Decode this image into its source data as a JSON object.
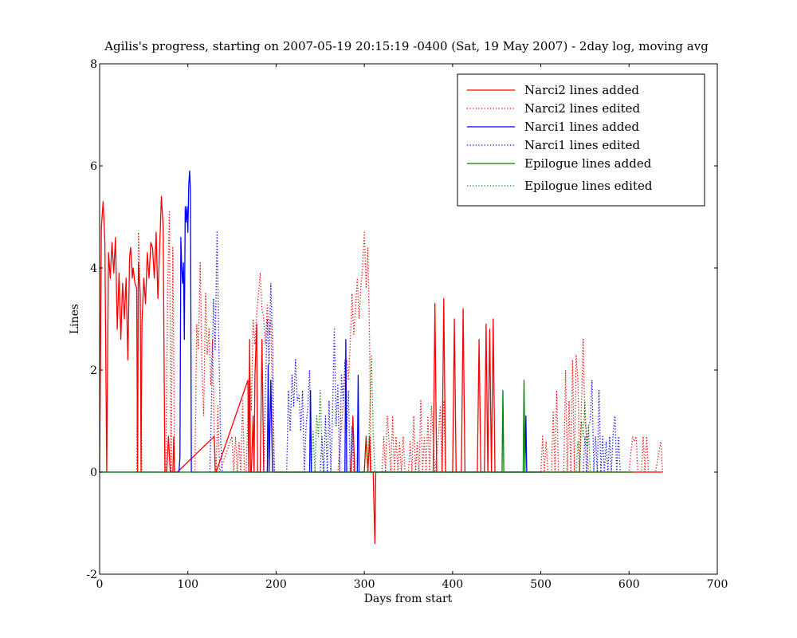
{
  "chart_data": {
    "type": "line",
    "title": "Agilis's progress, starting on 2007-05-19 20:15:19 -0400 (Sat, 19 May 2007)  - 2day log, moving avg",
    "xlabel": "Days from start",
    "ylabel": "Lines",
    "xlim": [
      0,
      700
    ],
    "ylim": [
      -2,
      8
    ],
    "xticks": [
      "0",
      "100",
      "200",
      "300",
      "400",
      "500",
      "600",
      "700"
    ],
    "yticks": [
      "-2",
      "0",
      "2",
      "4",
      "6",
      "8"
    ],
    "grid": false,
    "legend_position": "top-right",
    "series": [
      {
        "name": "Narci2 lines added",
        "color": "#ff0000",
        "style": "solid",
        "x": [
          0,
          2,
          4,
          6,
          8,
          10,
          12,
          14,
          16,
          18,
          20,
          22,
          24,
          26,
          28,
          30,
          32,
          34,
          35,
          36,
          37,
          38,
          40,
          42,
          43,
          44,
          46,
          47,
          48,
          50,
          52,
          54,
          56,
          58,
          60,
          62,
          64,
          66,
          68,
          70,
          72,
          74,
          76,
          78,
          80,
          82,
          83,
          84,
          85,
          86,
          87,
          88,
          130,
          131,
          132,
          168,
          169,
          170,
          171,
          172,
          174,
          175,
          176,
          178,
          179,
          180,
          182,
          184,
          186,
          187,
          188,
          238,
          240,
          242,
          285,
          287,
          289,
          290,
          300,
          302,
          304,
          306,
          307,
          308,
          310,
          312,
          313,
          314,
          316,
          378,
          380,
          382,
          388,
          390,
          392,
          400,
          402,
          404,
          410,
          412,
          414,
          428,
          430,
          432,
          436,
          438,
          440,
          442,
          444,
          446,
          448,
          450,
          600,
          610,
          620,
          630,
          638
        ],
        "y": [
          0,
          4.8,
          5.3,
          4.5,
          0,
          4.3,
          3.8,
          4.5,
          3.9,
          4.6,
          2.8,
          3.9,
          2.6,
          3.7,
          3.0,
          3.8,
          2.2,
          4.2,
          4.4,
          4.2,
          3.8,
          4.0,
          3.7,
          3.6,
          0,
          4.1,
          3.5,
          0,
          2.9,
          3.8,
          3.3,
          4.3,
          3.8,
          4.5,
          4.4,
          3.8,
          4.7,
          3.4,
          4.4,
          5.4,
          4.8,
          0,
          0,
          0.7,
          0,
          0,
          0,
          0.7,
          0,
          0,
          0,
          0,
          0.7,
          0,
          0,
          1.8,
          0,
          2.6,
          0,
          0,
          1.1,
          0,
          1.9,
          2.9,
          0,
          0,
          0,
          2.6,
          0,
          0,
          0,
          0,
          0,
          0,
          0,
          1.1,
          0,
          0,
          0,
          0.7,
          0,
          0.7,
          0,
          0,
          0,
          -1.4,
          0,
          0,
          0,
          0,
          3.3,
          0,
          0,
          3.4,
          0,
          0,
          3.0,
          0,
          0,
          3.2,
          0,
          0,
          2.6,
          0,
          0,
          2.9,
          0,
          2.8,
          0,
          3.0,
          0,
          0,
          0,
          0,
          0,
          0,
          0
        ]
      },
      {
        "name": "Narci2 lines edited",
        "color": "#ff0000",
        "style": "dotted",
        "x": [
          42,
          44,
          46,
          48,
          75,
          77,
          79,
          81,
          83,
          85,
          87,
          108,
          110,
          112,
          114,
          116,
          118,
          120,
          122,
          124,
          126,
          128,
          130,
          132,
          134,
          136,
          150,
          152,
          154,
          156,
          158,
          160,
          162,
          164,
          166,
          170,
          172,
          174,
          176,
          178,
          180,
          182,
          184,
          186,
          188,
          190,
          192,
          194,
          196,
          198,
          270,
          275,
          278,
          280,
          282,
          284,
          286,
          288,
          290,
          292,
          294,
          296,
          298,
          300,
          302,
          304,
          306,
          307,
          308,
          310,
          320,
          322,
          324,
          326,
          328,
          330,
          332,
          334,
          336,
          338,
          340,
          342,
          344,
          346,
          350,
          352,
          354,
          356,
          358,
          360,
          362,
          364,
          366,
          368,
          370,
          372,
          374,
          376,
          378,
          380,
          384,
          386,
          388,
          390,
          392,
          500,
          502,
          504,
          506,
          508,
          512,
          514,
          516,
          518,
          520,
          526,
          528,
          530,
          532,
          534,
          536,
          538,
          540,
          542,
          544,
          546,
          548,
          550,
          552,
          554,
          556,
          600,
          604,
          606,
          608,
          610,
          612,
          614,
          616,
          618,
          620,
          622,
          630,
          636,
          638
        ],
        "y": [
          0,
          4.7,
          3.5,
          0,
          0,
          3.5,
          5.1,
          0,
          4.4,
          0,
          0,
          0,
          2.9,
          2.4,
          4.1,
          2.0,
          1.1,
          3.5,
          2.3,
          2.8,
          1.7,
          2.6,
          0.6,
          0,
          1.3,
          0,
          0.7,
          0,
          0.7,
          0,
          0.6,
          0,
          1.4,
          0,
          0,
          2.2,
          1.2,
          3.0,
          2.5,
          3.1,
          3.5,
          3.9,
          3.2,
          3.0,
          2.5,
          3.3,
          2.7,
          3.0,
          1.2,
          0,
          0,
          1.1,
          1.9,
          2.2,
          1.8,
          2.5,
          3.5,
          2.7,
          3.2,
          3.8,
          3.0,
          3.6,
          4.0,
          4.7,
          3.6,
          4.4,
          2.5,
          0.7,
          0,
          0,
          0,
          0.7,
          0,
          1.1,
          0.6,
          0,
          1.1,
          0,
          0.7,
          0,
          0.6,
          0,
          0.7,
          0,
          0,
          0.6,
          0,
          1.1,
          0,
          0.6,
          0,
          1.4,
          0,
          0.7,
          0,
          1.1,
          0,
          1.3,
          0.7,
          0,
          0.7,
          1.3,
          0,
          1.4,
          0,
          0,
          0.7,
          0,
          0.6,
          0,
          0,
          1.2,
          0,
          1.6,
          0,
          0,
          2.0,
          0,
          1.4,
          0,
          2.2,
          0,
          2.3,
          1.8,
          0,
          1.3,
          2.6,
          1.0,
          0.7,
          0,
          0,
          0,
          0.7,
          0.6,
          0.7,
          0,
          0,
          0,
          0.7,
          0,
          0.7,
          0,
          0,
          0.6,
          0
        ]
      },
      {
        "name": "Narci1 lines added",
        "color": "#0000ff",
        "style": "solid",
        "x": [
          0,
          90,
          91,
          92,
          93,
          94,
          95,
          96,
          97,
          98,
          99,
          100,
          101,
          102,
          103,
          104,
          105,
          106,
          128,
          130,
          132,
          188,
          190,
          191,
          192,
          194,
          196,
          198,
          200,
          236,
          238,
          239,
          240,
          242,
          276,
          278,
          279,
          280,
          282,
          290,
          292,
          293,
          294,
          296,
          480,
          482,
          483,
          484,
          485,
          486,
          500
        ],
        "y": [
          0,
          0,
          0.3,
          4.6,
          4.0,
          3.7,
          4.1,
          2.6,
          5.2,
          4.9,
          5.2,
          4.7,
          5.6,
          5.9,
          5.5,
          0,
          0,
          0,
          0,
          0,
          0,
          0,
          0,
          2.1,
          0,
          1.8,
          0,
          0,
          0,
          0,
          0,
          1.6,
          0,
          0,
          0,
          0,
          2.6,
          0,
          0,
          0,
          0,
          1.9,
          0,
          0,
          0,
          0,
          1.1,
          0,
          0,
          0,
          0
        ]
      },
      {
        "name": "Narci1 lines edited",
        "color": "#0000ff",
        "style": "dotted",
        "x": [
          125,
          127,
          129,
          131,
          133,
          135,
          137,
          139,
          186,
          188,
          190,
          192,
          194,
          196,
          198,
          212,
          214,
          216,
          218,
          220,
          222,
          224,
          226,
          228,
          230,
          232,
          234,
          236,
          238,
          240,
          250,
          252,
          254,
          256,
          258,
          260,
          262,
          264,
          266,
          268,
          270,
          272,
          274,
          276,
          278,
          280,
          282,
          284,
          286,
          288,
          548,
          550,
          552,
          554,
          556,
          558,
          560,
          562,
          564,
          566,
          568,
          570,
          572,
          574,
          576,
          578,
          580,
          582,
          584,
          586,
          588,
          590,
          592,
          594,
          596
        ],
        "y": [
          0,
          1.5,
          3.4,
          2.4,
          4.7,
          2.6,
          0.7,
          0,
          0,
          1.6,
          3.0,
          2.1,
          3.7,
          2.5,
          0,
          0,
          1.6,
          0.8,
          1.9,
          1.3,
          2.2,
          1.4,
          1.5,
          0.8,
          1.6,
          0,
          0.9,
          1.3,
          2.0,
          0,
          0,
          0.7,
          0,
          1.1,
          0,
          1.4,
          0,
          1.2,
          2.8,
          0.9,
          1.7,
          0,
          1.9,
          1.4,
          2.2,
          0.8,
          1.6,
          0,
          0.9,
          0,
          0,
          0.7,
          0,
          0.9,
          1.0,
          1.8,
          0,
          0.7,
          0,
          1.6,
          0,
          0.7,
          0,
          0.6,
          0,
          0.7,
          0,
          0.8,
          1.1,
          0,
          0.7,
          0,
          0,
          0,
          0
        ]
      },
      {
        "name": "Epilogue lines added",
        "color": "#008000",
        "style": "solid",
        "x": [
          0,
          456,
          457,
          458,
          459,
          480,
          481,
          482,
          483,
          484,
          605
        ],
        "y": [
          0,
          0,
          1.6,
          0,
          0,
          0,
          1.8,
          0,
          0,
          0,
          0
        ]
      },
      {
        "name": "Epilogue lines edited",
        "color": "#008000",
        "style": "dotted",
        "x": [
          240,
          242,
          244,
          246,
          248,
          250,
          252,
          254,
          300,
          302,
          304,
          306,
          308,
          310,
          312,
          540,
          542,
          544,
          546,
          548,
          550,
          552,
          554,
          556,
          558
        ],
        "y": [
          0,
          0.8,
          0,
          1.1,
          0.7,
          1.6,
          0.4,
          0,
          0,
          0.7,
          0,
          1.1,
          2.3,
          0.8,
          0,
          0,
          0.6,
          0,
          1.0,
          0.7,
          1.4,
          0.5,
          0.9,
          0,
          0
        ]
      }
    ]
  }
}
